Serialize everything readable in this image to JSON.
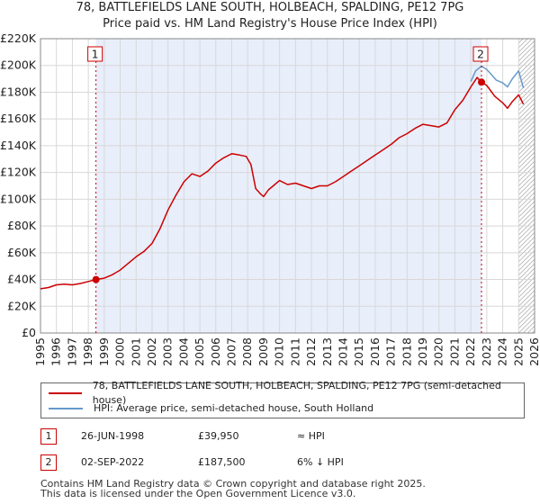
{
  "chart_data": {
    "type": "line",
    "title": "78, BATTLEFIELDS LANE SOUTH, HOLBEACH, SPALDING, PE12 7PG",
    "subtitle": "Price paid vs. HM Land Registry's House Price Index (HPI)",
    "xlim": [
      1995,
      2026
    ],
    "ylim": [
      0,
      220000
    ],
    "x_ticks": [
      1995,
      1996,
      1997,
      1998,
      1999,
      2000,
      2001,
      2002,
      2003,
      2004,
      2005,
      2006,
      2007,
      2008,
      2009,
      2010,
      2011,
      2012,
      2013,
      2014,
      2015,
      2016,
      2017,
      2018,
      2019,
      2020,
      2021,
      2022,
      2023,
      2024,
      2025,
      2026
    ],
    "y_ticks": [
      0,
      20000,
      40000,
      60000,
      80000,
      100000,
      120000,
      140000,
      160000,
      180000,
      200000,
      220000
    ],
    "y_tick_labels": [
      "£0",
      "£20K",
      "£40K",
      "£60K",
      "£80K",
      "£100K",
      "£120K",
      "£140K",
      "£160K",
      "£180K",
      "£200K",
      "£220K"
    ],
    "series": [
      {
        "name": "78, BATTLEFIELDS LANE SOUTH, HOLBEACH, SPALDING, PE12 7PG (semi-detached house)",
        "color": "#cc0000",
        "x": [
          1995.0,
          1995.5,
          1996.0,
          1996.5,
          1997.0,
          1997.5,
          1998.0,
          1998.48,
          1999.0,
          1999.5,
          2000.0,
          2000.5,
          2001.0,
          2001.5,
          2002.0,
          2002.5,
          2003.0,
          2003.5,
          2004.0,
          2004.5,
          2005.0,
          2005.5,
          2006.0,
          2006.5,
          2007.0,
          2007.5,
          2007.9,
          2008.2,
          2008.5,
          2008.8,
          2009.0,
          2009.3,
          2009.6,
          2010.0,
          2010.5,
          2011.0,
          2011.5,
          2012.0,
          2012.5,
          2013.0,
          2013.5,
          2014.0,
          2014.5,
          2015.0,
          2015.5,
          2016.0,
          2016.5,
          2017.0,
          2017.5,
          2018.0,
          2018.5,
          2019.0,
          2019.5,
          2020.0,
          2020.5,
          2021.0,
          2021.5,
          2022.0,
          2022.4,
          2022.67,
          2023.0,
          2023.5,
          2024.0,
          2024.3,
          2024.6,
          2025.0,
          2025.3
        ],
        "values": [
          33000,
          34000,
          36000,
          36500,
          36000,
          37000,
          38500,
          39950,
          41000,
          43500,
          47000,
          52000,
          57000,
          61000,
          67000,
          78000,
          92000,
          103000,
          113000,
          119000,
          117000,
          121000,
          127000,
          131000,
          134000,
          133000,
          132000,
          126000,
          108000,
          104000,
          102000,
          107000,
          110000,
          114000,
          111000,
          112000,
          110000,
          108000,
          110000,
          110000,
          113000,
          117000,
          121000,
          125000,
          129000,
          133000,
          137000,
          141000,
          146000,
          149000,
          153000,
          156000,
          155000,
          154000,
          157000,
          167000,
          174000,
          184000,
          191000,
          187500,
          185000,
          177000,
          172000,
          168000,
          173000,
          178000,
          171000
        ]
      },
      {
        "name": "HPI: Average price, semi-detached house, South Holland",
        "color": "#6699cc",
        "x": [
          2022.0,
          2022.3,
          2022.67,
          2023.0,
          2023.3,
          2023.6,
          2024.0,
          2024.3,
          2024.6,
          2025.0,
          2025.3
        ],
        "values": [
          188000,
          196000,
          199500,
          197000,
          193000,
          189000,
          187000,
          184000,
          190000,
          196000,
          183000
        ]
      }
    ],
    "sales": [
      {
        "label": "1",
        "x": 1998.48,
        "value": 39950
      },
      {
        "label": "2",
        "x": 2022.67,
        "value": 187500
      }
    ]
  },
  "legend": {
    "entry1": "78, BATTLEFIELDS LANE SOUTH, HOLBEACH, SPALDING, PE12 7PG (semi-detached house)",
    "entry2": "HPI: Average price, semi-detached house, South Holland"
  },
  "sales_table": [
    {
      "num": "1",
      "date": "26-JUN-1998",
      "price": "£39,950",
      "hpi": "≈ HPI"
    },
    {
      "num": "2",
      "date": "02-SEP-2022",
      "price": "£187,500",
      "hpi": "6% ↓ HPI"
    }
  ],
  "footer": {
    "line1": "Contains HM Land Registry data © Crown copyright and database right 2025.",
    "line2": "This data is licensed under the Open Government Licence v3.0."
  },
  "colors": {
    "property_line": "#cc0000",
    "hpi_line": "#6699cc",
    "shade": "#e8eefa",
    "grid": "#d8d8d8"
  }
}
